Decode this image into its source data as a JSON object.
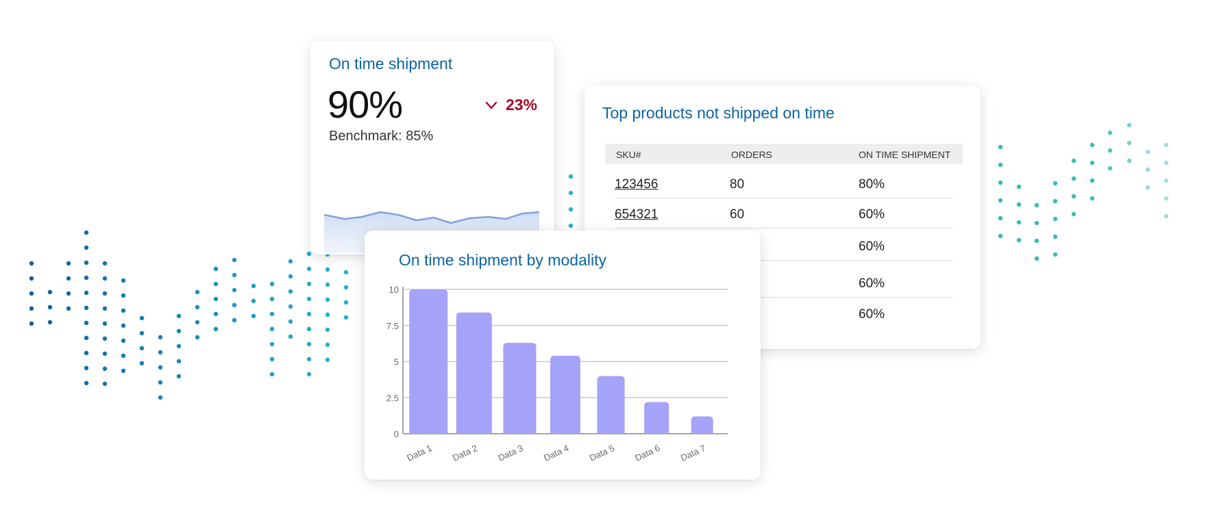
{
  "kpi": {
    "title": "On time shipment",
    "value": "90%",
    "change": "23%",
    "change_direction": "down",
    "benchmark": "Benchmark: 85%",
    "colors": {
      "title": "#0b64a3",
      "negative": "#a4062b",
      "sparkline": "#8fb3e0"
    }
  },
  "table": {
    "title": "Top products not shipped on time",
    "columns": [
      "SKU#",
      "ORDERS",
      "ON TIME SHIPMENT"
    ],
    "rows": [
      {
        "sku": "123456",
        "orders": "80",
        "on_time": "80%"
      },
      {
        "sku": "654321",
        "orders": "60",
        "on_time": "60%"
      },
      {
        "sku": "",
        "orders": "",
        "on_time": "60%"
      },
      {
        "sku": "",
        "orders": "",
        "on_time": "60%"
      },
      {
        "sku": "",
        "orders": "",
        "on_time": "60%"
      }
    ]
  },
  "chart": {
    "title": "On time shipment by modality"
  },
  "chart_data": {
    "type": "bar",
    "title": "On time shipment by modality",
    "categories": [
      "Data 1",
      "Data 2",
      "Data 3",
      "Data 4",
      "Data 5",
      "Data 6",
      "Data 7"
    ],
    "values": [
      10,
      8.4,
      6.3,
      5.4,
      4.0,
      2.2,
      1.2
    ],
    "ylim": [
      0,
      10
    ],
    "yticks": [
      "0",
      "2.5",
      "5",
      "7.5",
      "10"
    ],
    "grid": true,
    "bar_color": "#a5a3f7"
  }
}
